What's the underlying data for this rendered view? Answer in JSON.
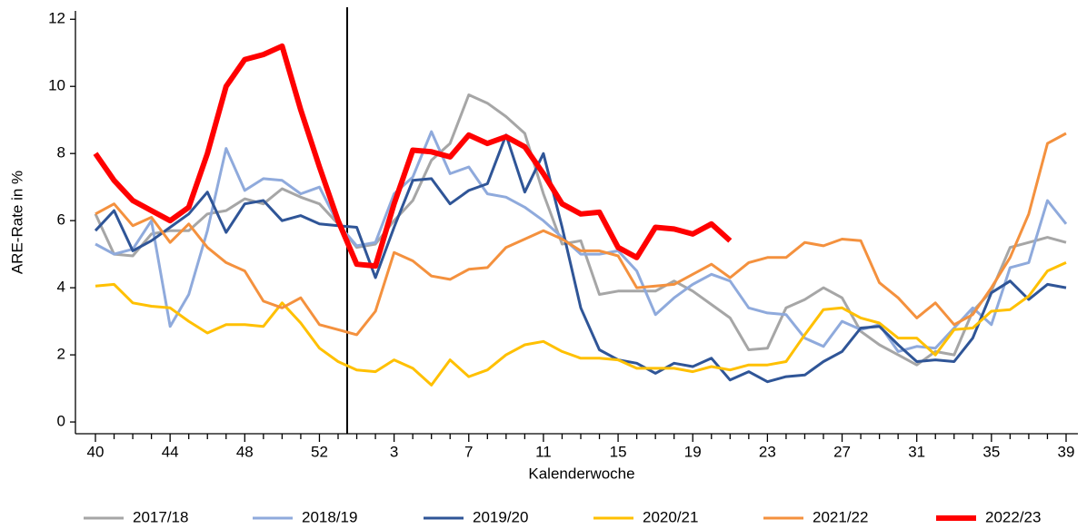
{
  "chart_data": {
    "type": "line",
    "x_label": "Kalenderwoche",
    "y_label": "ARE-Rate in %",
    "categories": [
      "40",
      null,
      null,
      null,
      "44",
      null,
      null,
      null,
      "48",
      null,
      null,
      null,
      "52",
      null,
      null,
      null,
      "3",
      null,
      null,
      null,
      "7",
      null,
      null,
      null,
      "11",
      null,
      null,
      null,
      "15",
      null,
      null,
      null,
      "19",
      null,
      null,
      null,
      "23",
      null,
      null,
      null,
      "27",
      null,
      null,
      null,
      "31",
      null,
      null,
      null,
      "35",
      null,
      null,
      null,
      "39"
    ],
    "ylim": [
      -0.35,
      12.25
    ],
    "yticks": [
      0,
      2,
      4,
      6,
      8,
      10,
      12
    ],
    "series": [
      {
        "name": "2017/18",
        "color": "#a6a6a6",
        "line_width": 3,
        "values": [
          6.2,
          5.0,
          4.95,
          5.6,
          5.7,
          5.7,
          6.2,
          6.3,
          6.65,
          6.5,
          6.95,
          6.7,
          6.5,
          5.9,
          5.2,
          5.3,
          6.0,
          6.6,
          7.8,
          8.3,
          9.75,
          9.5,
          9.1,
          8.6,
          6.8,
          5.3,
          5.4,
          3.8,
          3.9,
          3.9,
          3.9,
          4.2,
          3.9,
          3.5,
          3.1,
          2.15,
          2.2,
          3.4,
          3.65,
          4.0,
          3.7,
          2.7,
          2.3,
          2.0,
          1.7,
          2.1,
          2.0,
          3.3,
          3.9,
          5.2,
          5.35,
          5.5,
          5.35
        ]
      },
      {
        "name": "2018/19",
        "color": "#8faadc",
        "line_width": 3,
        "values": [
          5.3,
          5.0,
          5.15,
          6.0,
          2.85,
          3.8,
          5.7,
          8.15,
          6.9,
          7.25,
          7.2,
          6.8,
          7.0,
          5.9,
          5.25,
          5.35,
          6.8,
          7.3,
          8.65,
          7.4,
          7.6,
          6.8,
          6.7,
          6.4,
          6.0,
          5.5,
          5.0,
          5.0,
          5.1,
          4.5,
          3.2,
          3.7,
          4.1,
          4.4,
          4.2,
          3.4,
          3.25,
          3.2,
          2.5,
          2.25,
          3.0,
          2.75,
          2.9,
          2.1,
          2.25,
          2.2,
          2.8,
          3.4,
          2.9,
          4.6,
          4.75,
          6.6,
          5.9
        ]
      },
      {
        "name": "2019/20",
        "color": "#2f5597",
        "line_width": 3,
        "values": [
          5.7,
          6.3,
          5.1,
          5.4,
          5.8,
          6.2,
          6.85,
          5.65,
          6.5,
          6.6,
          6.0,
          6.15,
          5.9,
          5.85,
          5.8,
          4.3,
          5.8,
          7.2,
          7.25,
          6.5,
          6.9,
          7.1,
          8.55,
          6.85,
          8.0,
          5.8,
          3.4,
          2.15,
          1.85,
          1.75,
          1.45,
          1.75,
          1.65,
          1.9,
          1.25,
          1.5,
          1.2,
          1.35,
          1.4,
          1.8,
          2.1,
          2.8,
          2.85,
          2.3,
          1.8,
          1.85,
          1.8,
          2.5,
          3.85,
          4.2,
          3.65,
          4.1,
          4.0
        ]
      },
      {
        "name": "2020/21",
        "color": "#ffc000",
        "line_width": 3,
        "values": [
          4.05,
          4.1,
          3.55,
          3.45,
          3.4,
          3.0,
          2.65,
          2.9,
          2.9,
          2.85,
          3.55,
          2.95,
          2.2,
          1.8,
          1.55,
          1.5,
          1.85,
          1.6,
          1.1,
          1.85,
          1.35,
          1.55,
          2.0,
          2.3,
          2.4,
          2.1,
          1.9,
          1.9,
          1.85,
          1.6,
          1.6,
          1.6,
          1.5,
          1.65,
          1.55,
          1.7,
          1.7,
          1.8,
          2.6,
          3.35,
          3.4,
          3.1,
          2.95,
          2.5,
          2.5,
          2.0,
          2.75,
          2.8,
          3.3,
          3.35,
          3.75,
          4.5,
          4.75
        ]
      },
      {
        "name": "2021/22",
        "color": "#f4913e",
        "line_width": 3,
        "values": [
          6.2,
          6.5,
          5.85,
          6.1,
          5.35,
          5.9,
          5.2,
          4.75,
          4.5,
          3.6,
          3.4,
          3.7,
          2.9,
          2.75,
          2.6,
          3.3,
          5.05,
          4.8,
          4.35,
          4.25,
          4.55,
          4.6,
          5.2,
          5.45,
          5.7,
          5.45,
          5.1,
          5.1,
          4.95,
          4.0,
          4.05,
          4.1,
          4.4,
          4.7,
          4.3,
          4.75,
          4.9,
          4.9,
          5.35,
          5.25,
          5.45,
          5.4,
          4.15,
          3.7,
          3.1,
          3.55,
          2.9,
          3.2,
          4.0,
          4.9,
          6.2,
          8.3,
          8.6
        ]
      },
      {
        "name": "2022/23",
        "color": "#ff0000",
        "line_width": 6,
        "values": [
          8.0,
          7.2,
          6.6,
          6.3,
          6.0,
          6.4,
          8.0,
          10.0,
          10.8,
          10.95,
          11.2,
          9.3,
          7.6,
          6.0,
          4.7,
          4.65,
          6.5,
          8.1,
          8.05,
          7.9,
          8.55,
          8.3,
          8.5,
          8.2,
          7.4,
          6.5,
          6.2,
          6.25,
          5.2,
          4.9,
          5.8,
          5.75,
          5.6,
          5.9,
          5.4,
          null,
          null,
          null,
          null,
          null,
          null,
          null,
          null,
          null,
          null,
          null,
          null,
          null,
          null,
          null,
          null,
          null,
          null
        ]
      }
    ]
  }
}
